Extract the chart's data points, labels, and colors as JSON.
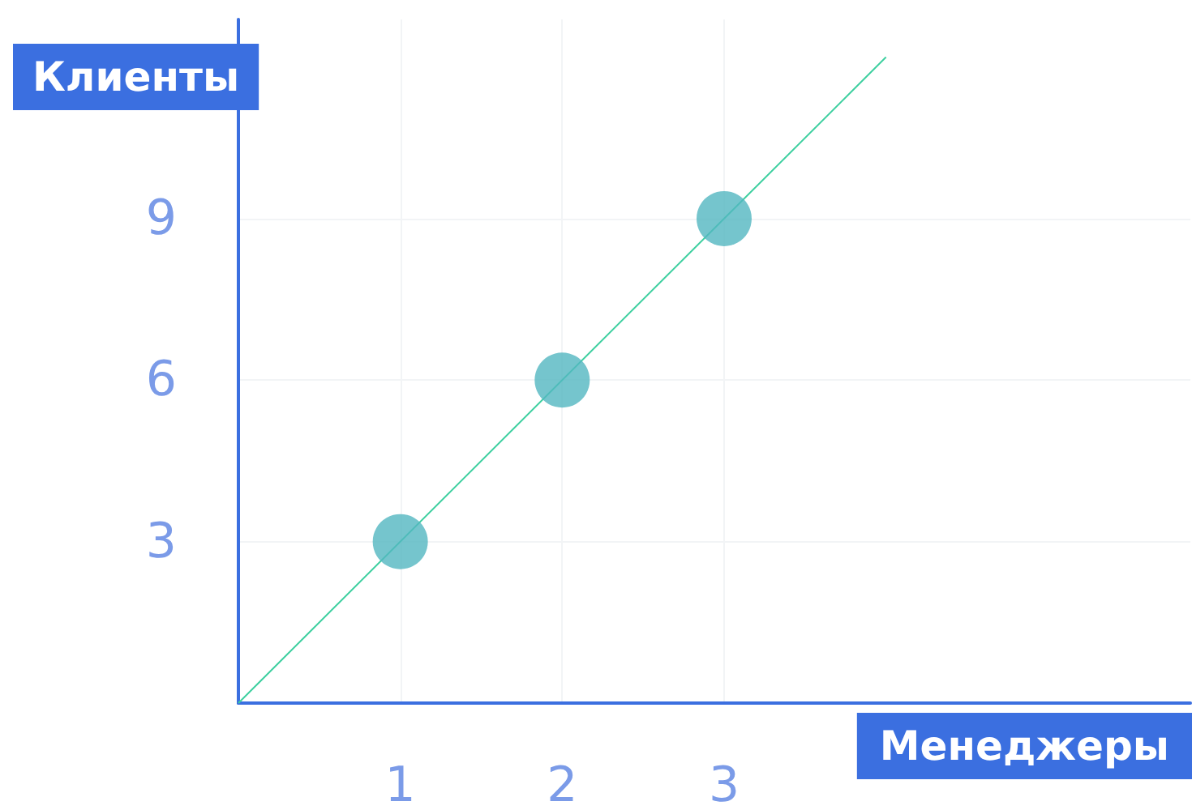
{
  "chart_data": {
    "type": "scatter",
    "xlabel": "Менеджеры",
    "ylabel": "Клиенты",
    "xlim": [
      0,
      5.88
    ],
    "ylim": [
      0,
      12.7
    ],
    "xticks": [
      1,
      2,
      3
    ],
    "yticks": [
      3,
      6,
      9
    ],
    "grid": true,
    "marker": "circle",
    "series": [
      {
        "color": "#52b6c0",
        "x": [
          1,
          2,
          3
        ],
        "values": [
          3,
          6,
          9
        ]
      },
      {
        "type": "line",
        "color": "#3ccf9f",
        "x": [
          0,
          4
        ],
        "values": [
          0,
          12
        ],
        "marker": "none"
      }
    ]
  }
}
